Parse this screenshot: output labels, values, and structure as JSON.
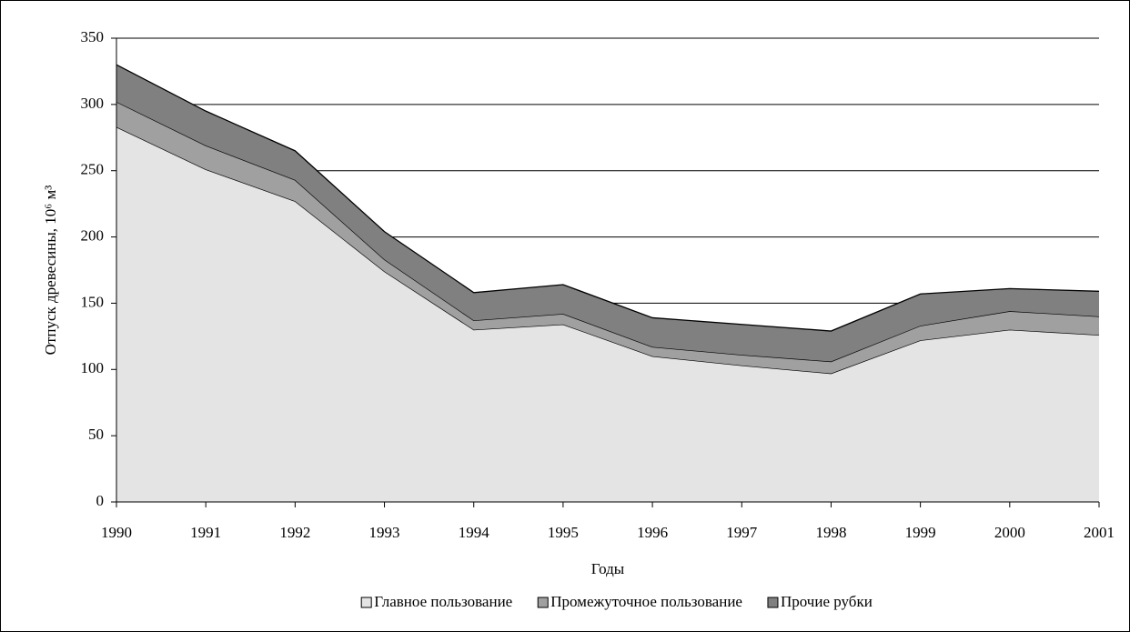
{
  "chart_data": {
    "type": "stacked_area",
    "xlabel": "Годы",
    "ylabel": "Отпуск древесины, 10⁶ м³",
    "categories": [
      "1990",
      "1991",
      "1992",
      "1993",
      "1994",
      "1995",
      "1996",
      "1997",
      "1998",
      "1999",
      "2000",
      "2001"
    ],
    "series": [
      {
        "name": "Главное пользование",
        "color": "#e4e4e4",
        "values": [
          283,
          251,
          227,
          174,
          130,
          134,
          110,
          103,
          97,
          122,
          130,
          126
        ]
      },
      {
        "name": "Промежуточное пользование",
        "color": "#a0a0a0",
        "values": [
          19,
          18,
          16,
          9,
          7,
          8,
          7,
          8,
          9,
          11,
          14,
          14
        ]
      },
      {
        "name": "Прочие рубки",
        "color": "#808080",
        "values": [
          28,
          26,
          22,
          21,
          21,
          22,
          22,
          23,
          23,
          24,
          17,
          19
        ]
      }
    ],
    "ylim": [
      0,
      350
    ],
    "yticks": [
      0,
      50,
      100,
      150,
      200,
      250,
      300,
      350
    ],
    "grid": true,
    "legend": "bottom"
  }
}
